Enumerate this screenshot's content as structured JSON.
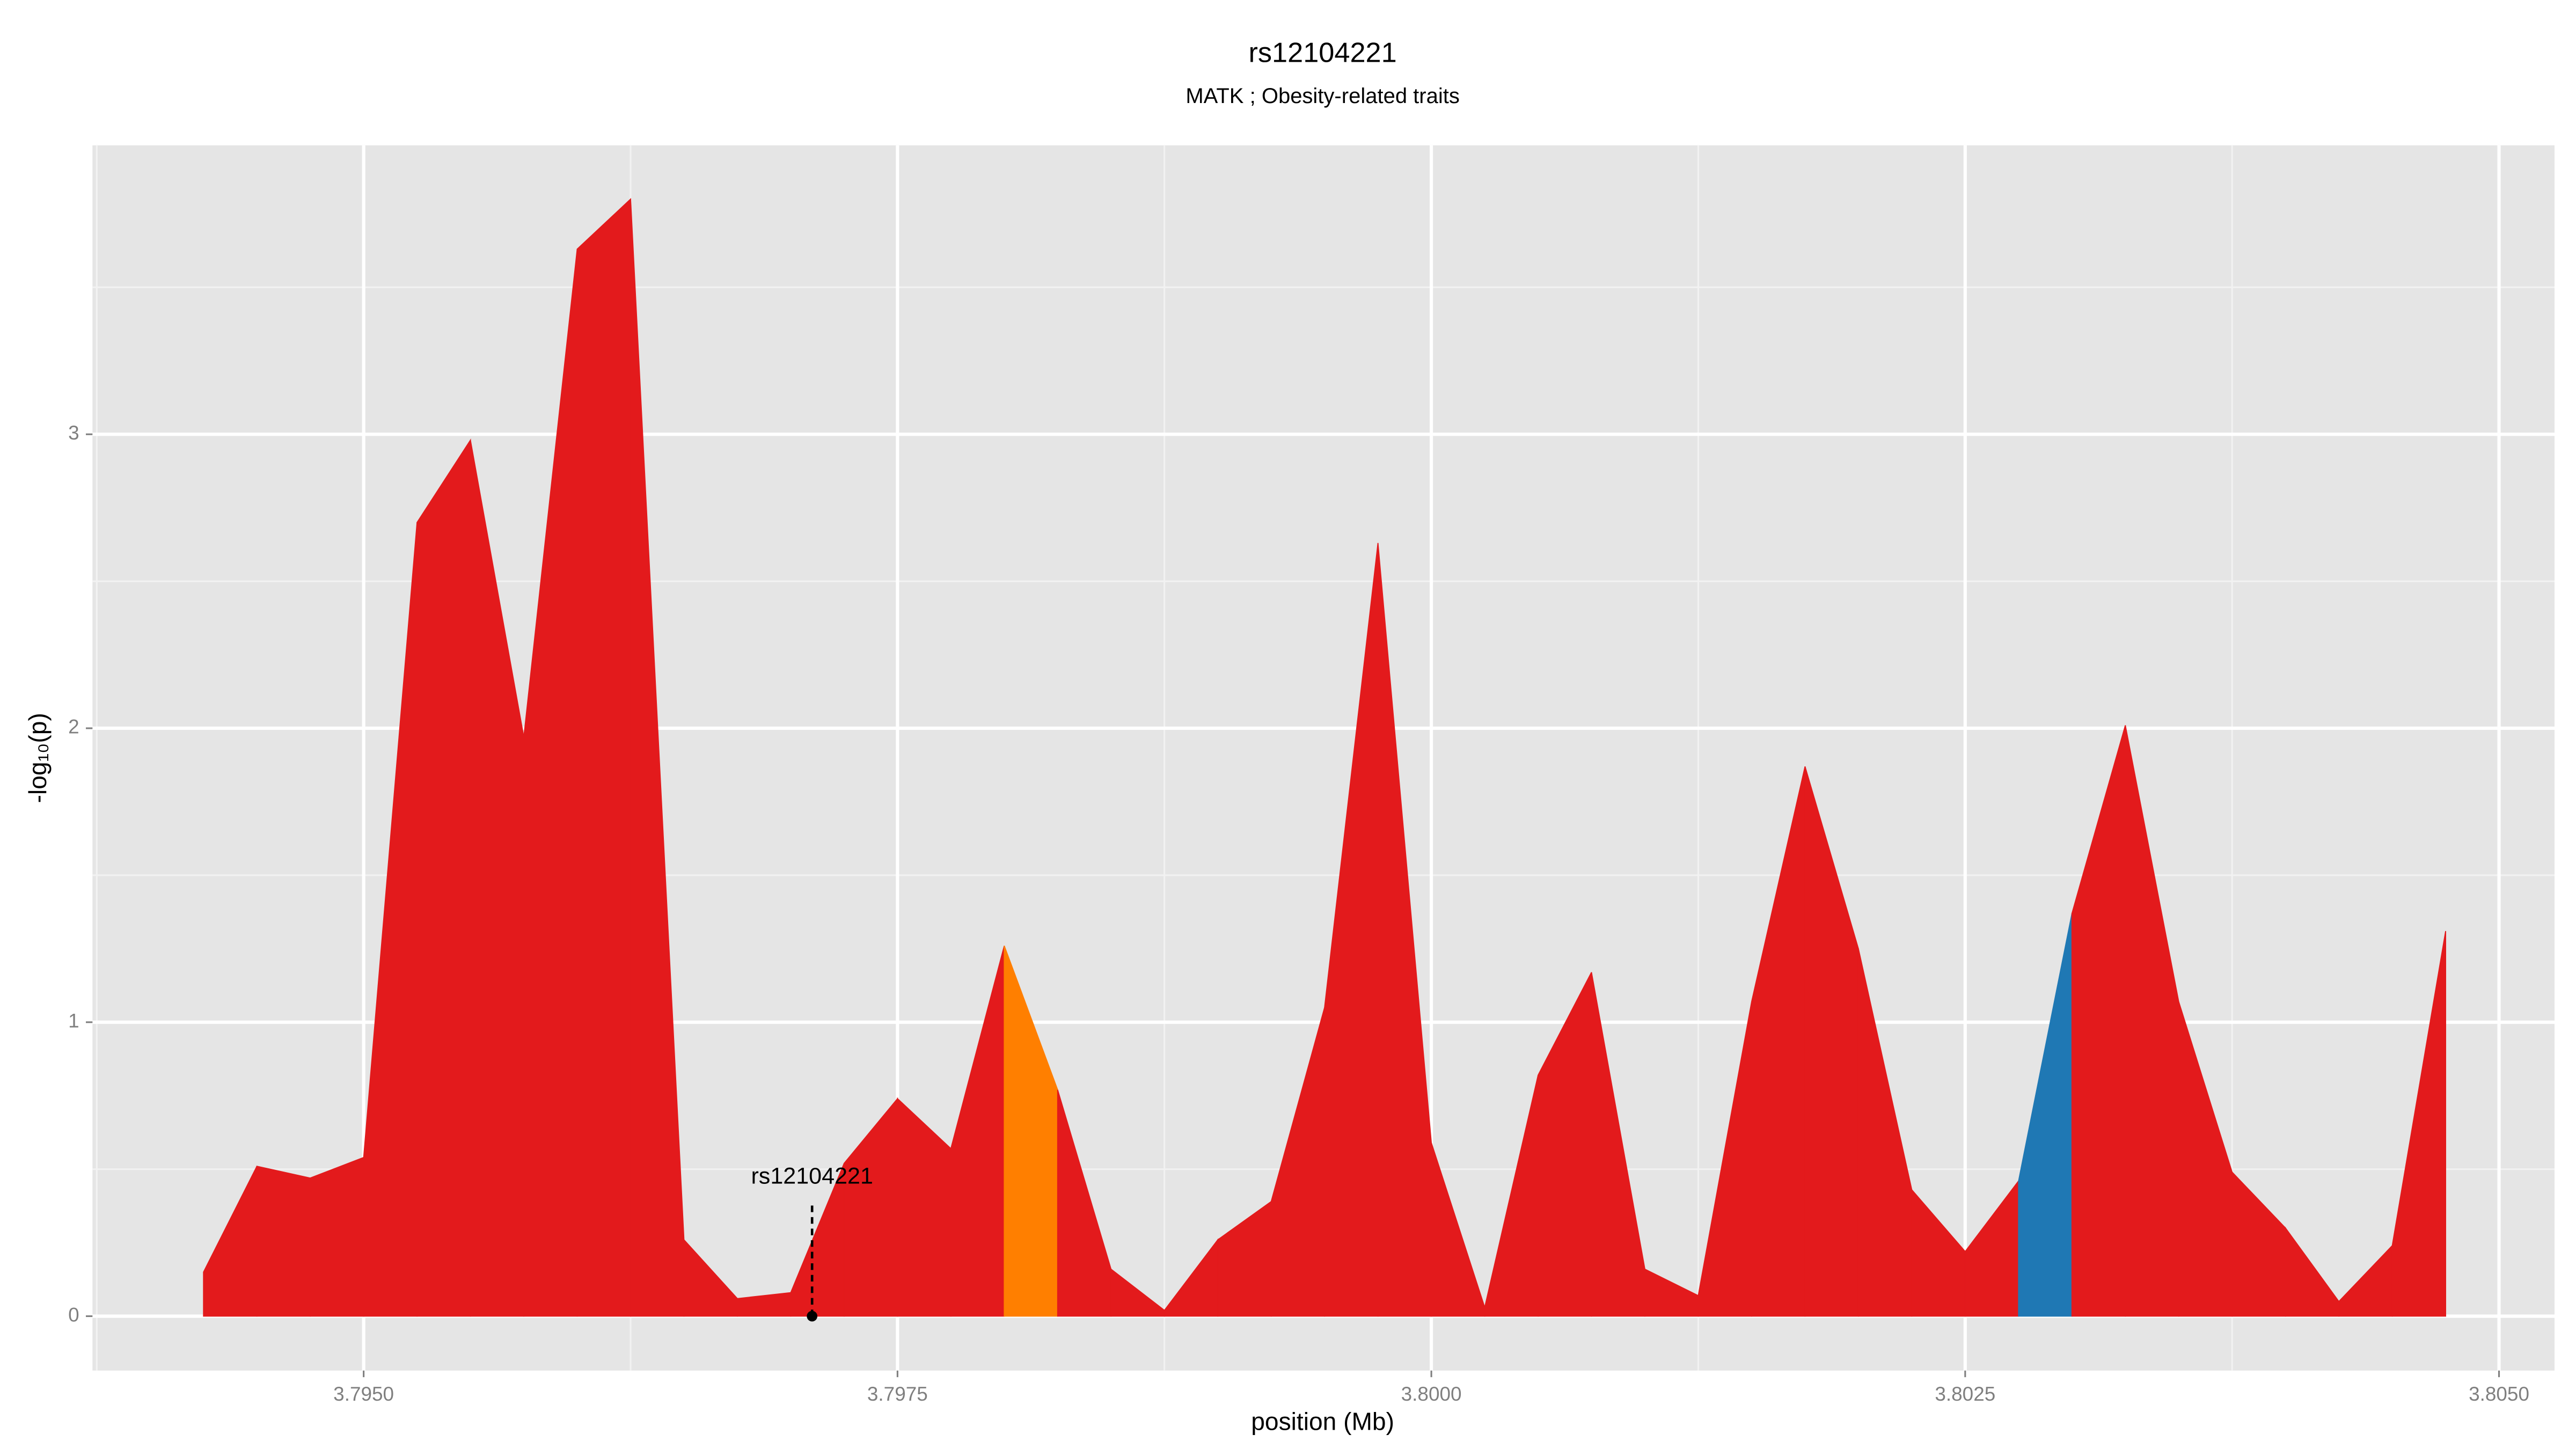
{
  "chart_data": {
    "type": "area",
    "title": "rs12104221",
    "subtitle": "MATK ; Obesity-related traits",
    "xlabel": "position (Mb)",
    "ylabel": "-log₁₀(p)",
    "x": [
      3.79425,
      3.7945,
      3.79475,
      3.795,
      3.79525,
      3.7955,
      3.79575,
      3.796,
      3.79625,
      3.7965,
      3.79675,
      3.797,
      3.79725,
      3.7975,
      3.79775,
      3.798,
      3.79825,
      3.7985,
      3.79875,
      3.799,
      3.79925,
      3.7995,
      3.79975,
      3.8,
      3.80025,
      3.8005,
      3.80075,
      3.801,
      3.80125,
      3.8015,
      3.80175,
      3.802,
      3.80225,
      3.8025,
      3.80275,
      3.803,
      3.80325,
      3.8035,
      3.80375,
      3.804,
      3.80425,
      3.8045,
      3.80475
    ],
    "values": [
      0.15,
      0.51,
      0.47,
      0.54,
      2.7,
      2.98,
      1.97,
      3.63,
      3.8,
      0.26,
      0.06,
      0.08,
      0.52,
      0.74,
      0.57,
      1.26,
      0.77,
      0.16,
      0.02,
      0.26,
      0.39,
      1.05,
      2.63,
      0.59,
      0.03,
      0.82,
      1.17,
      0.16,
      0.07,
      1.07,
      1.87,
      1.25,
      0.43,
      0.22,
      0.46,
      1.37,
      2.01,
      1.07,
      0.49,
      0.3,
      0.05,
      0.24,
      1.31
    ],
    "segment_colors": [
      "#e31a1c",
      "#e31a1c",
      "#e31a1c",
      "#e31a1c",
      "#e31a1c",
      "#e31a1c",
      "#e31a1c",
      "#e31a1c",
      "#e31a1c",
      "#e31a1c",
      "#e31a1c",
      "#e31a1c",
      "#e31a1c",
      "#e31a1c",
      "#e31a1c",
      "#ff7f00",
      "#e31a1c",
      "#e31a1c",
      "#e31a1c",
      "#e31a1c",
      "#e31a1c",
      "#e31a1c",
      "#e31a1c",
      "#e31a1c",
      "#e31a1c",
      "#e31a1c",
      "#e31a1c",
      "#e31a1c",
      "#e31a1c",
      "#e31a1c",
      "#e31a1c",
      "#e31a1c",
      "#e31a1c",
      "#e31a1c",
      "#1f78b4",
      "#e31a1c",
      "#e31a1c",
      "#e31a1c",
      "#e31a1c",
      "#e31a1c",
      "#e31a1c",
      "#e31a1c"
    ],
    "annotation": {
      "text": "rs12104221",
      "x": 3.7971,
      "y": 0
    },
    "xlim": [
      3.79373,
      3.80526
    ],
    "ylim": [
      -0.185,
      3.983
    ],
    "xticks": [
      {
        "value": 3.795,
        "label": "3.7950"
      },
      {
        "value": 3.7975,
        "label": "3.7975"
      },
      {
        "value": 3.8,
        "label": "3.8000"
      },
      {
        "value": 3.8025,
        "label": "3.8025"
      },
      {
        "value": 3.805,
        "label": "3.8050"
      }
    ],
    "yticks": [
      0,
      1,
      2,
      3
    ],
    "grid": true
  }
}
